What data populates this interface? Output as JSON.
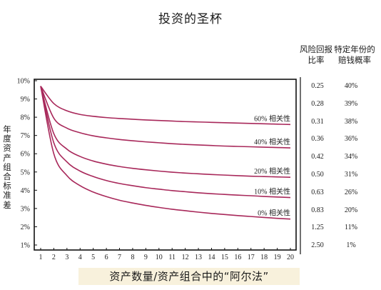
{
  "title": "投资的圣杯",
  "subtitle": "资产数量/资产组合中的“阿尔法”",
  "colors": {
    "curve": "#a8285a",
    "axis": "#111111",
    "subtitle_bg": "#f8f1dc"
  },
  "table": {
    "header_left": "风险回报\n比率",
    "header_right": "特定年份的\n赔钱概率",
    "ratios": [
      "0.25",
      "0.28",
      "0.31",
      "0.36",
      "0.42",
      "0.50",
      "0.63",
      "0.83",
      "1.25",
      "2.50"
    ],
    "probabilities": [
      "40%",
      "39%",
      "38%",
      "36%",
      "34%",
      "31%",
      "26%",
      "20%",
      "11%",
      "1%"
    ]
  },
  "chart_data": {
    "type": "line",
    "ylabel": "年度资产组合标准差",
    "xlabel": "",
    "x": [
      1,
      2,
      3,
      4,
      5,
      6,
      7,
      8,
      9,
      10,
      11,
      12,
      13,
      14,
      15,
      16,
      17,
      18,
      19,
      20
    ],
    "xticks": [
      "1",
      "2",
      "3",
      "4",
      "5",
      "6",
      "7",
      "8",
      "9",
      "10",
      "11",
      "12",
      "13",
      "14",
      "15",
      "16",
      "17",
      "18",
      "19",
      "20"
    ],
    "yticks": [
      "1%",
      "2%",
      "3%",
      "4%",
      "5%",
      "6%",
      "7%",
      "8%",
      "9%",
      "10%"
    ],
    "ylim": [
      1,
      10
    ],
    "xlim": [
      1,
      20
    ],
    "series": [
      {
        "name": "60% 相关性",
        "values": [
          9.7,
          8.75,
          8.35,
          8.15,
          8.05,
          7.98,
          7.93,
          7.89,
          7.85,
          7.82,
          7.79,
          7.76,
          7.74,
          7.72,
          7.7,
          7.68,
          7.66,
          7.64,
          7.62,
          7.6
        ]
      },
      {
        "name": "40% 相关性",
        "values": [
          9.7,
          7.95,
          7.4,
          7.15,
          6.98,
          6.87,
          6.78,
          6.71,
          6.65,
          6.6,
          6.55,
          6.51,
          6.48,
          6.45,
          6.42,
          6.4,
          6.38,
          6.36,
          6.34,
          6.32
        ]
      },
      {
        "name": "20% 相关性",
        "values": [
          9.7,
          7.1,
          6.25,
          5.85,
          5.6,
          5.43,
          5.3,
          5.2,
          5.12,
          5.05,
          4.99,
          4.94,
          4.9,
          4.86,
          4.83,
          4.8,
          4.77,
          4.75,
          4.73,
          4.71
        ]
      },
      {
        "name": "10% 相关性",
        "values": [
          9.7,
          6.6,
          5.55,
          5.05,
          4.75,
          4.53,
          4.37,
          4.25,
          4.14,
          4.06,
          3.98,
          3.92,
          3.86,
          3.81,
          3.77,
          3.73,
          3.7,
          3.66,
          3.63,
          3.6
        ]
      },
      {
        "name": "0% 相关性",
        "values": [
          9.7,
          6.0,
          4.8,
          4.25,
          3.9,
          3.65,
          3.45,
          3.3,
          3.17,
          3.06,
          2.96,
          2.88,
          2.8,
          2.73,
          2.67,
          2.61,
          2.56,
          2.51,
          2.46,
          2.42
        ]
      }
    ]
  }
}
